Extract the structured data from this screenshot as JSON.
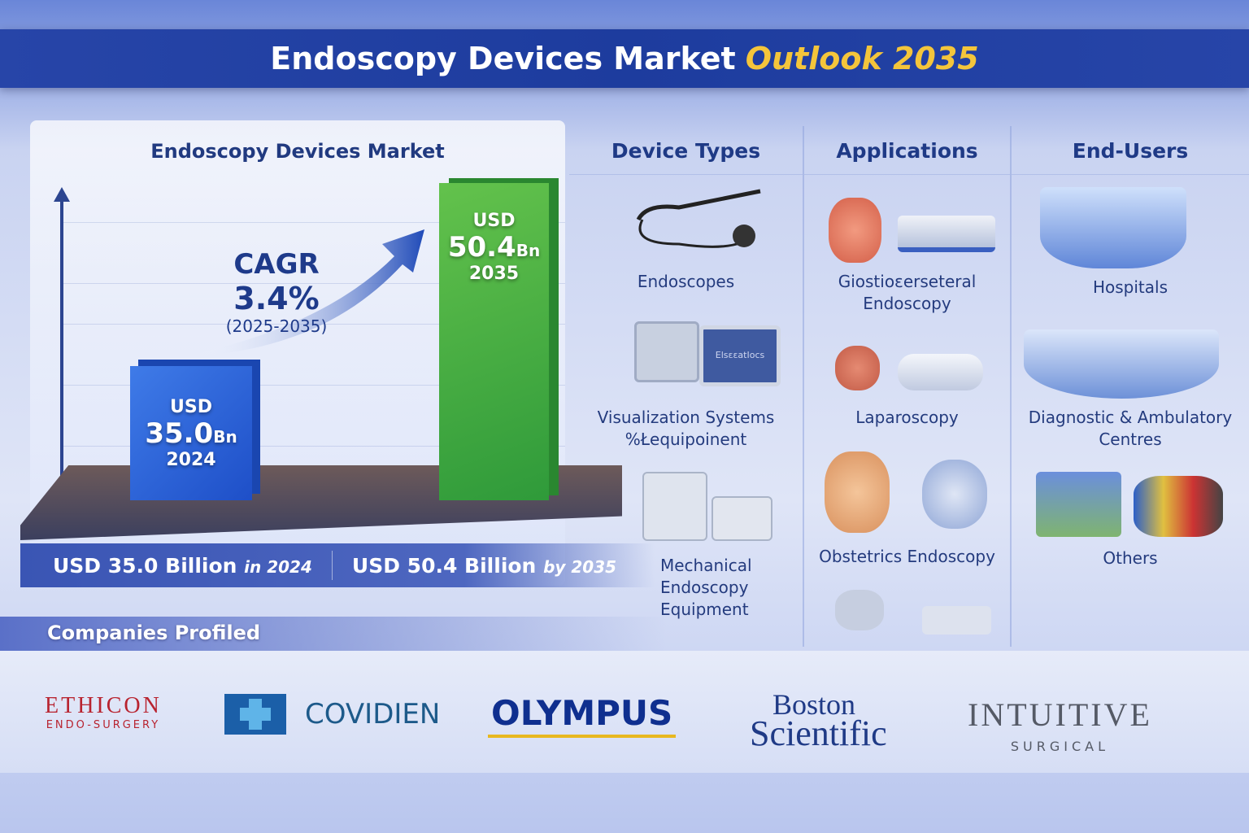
{
  "title": {
    "main": "Endoscopy Devices Market",
    "highlight": "Outlook 2035"
  },
  "chart_data": {
    "type": "bar",
    "title": "Endoscopy Devices Market",
    "categories": [
      "2024",
      "2035"
    ],
    "values": [
      35.0,
      50.4
    ],
    "unit": "USD Bn",
    "bar_colors": [
      "#2a5fd8",
      "#4cae43"
    ],
    "bar_labels": [
      {
        "currency": "USD",
        "value": "35.0",
        "suffix": "Bn",
        "year": "2024"
      },
      {
        "currency": "USD",
        "value": "50.4",
        "suffix": "Bn",
        "year": "2035"
      }
    ],
    "annotation": {
      "label": "CAGR",
      "value": "3.4%",
      "period": "(2025-2035)"
    }
  },
  "summary": [
    {
      "text": "USD 35.0 Billion",
      "tail": "in 2024"
    },
    {
      "text": "USD 50.4 Billion",
      "tail": "by 2035"
    }
  ],
  "columns": [
    {
      "header": "Device Types",
      "items": [
        "Endoscopes",
        "Visualization Systems\n%Łequipoinent",
        "Mechanical\nEndoscopy\nEquipment"
      ]
    },
    {
      "header": "Applications",
      "items": [
        "Giostioɛerseteral\nEndoscopy",
        "Laparoscopy",
        "Obstetrics Endoscopy"
      ]
    },
    {
      "header": "End-Users",
      "items": [
        "Hospitals",
        "Diagnostic & Ambulatory\nCentres",
        "Others"
      ]
    }
  ],
  "screen_text": "ElsɛɛatIocs",
  "companies": {
    "title": "Companies Profiled",
    "logos": [
      {
        "name": "ETHICON",
        "sub": "ENDO-SURGERY",
        "color": "#b8232f"
      },
      {
        "name": "COVIDIEN",
        "color": "#1d5a8a"
      },
      {
        "name": "OLYMPUS",
        "color": "#0f2f8f"
      },
      {
        "name": "Boston",
        "name2": "Scientific",
        "color": "#1f3a86"
      },
      {
        "name": "INTUITIVE",
        "sub": "SURGICAL",
        "color": "#555a66"
      }
    ]
  },
  "colors": {
    "banner": "#1d3c9e",
    "accent": "#f4c53b"
  }
}
